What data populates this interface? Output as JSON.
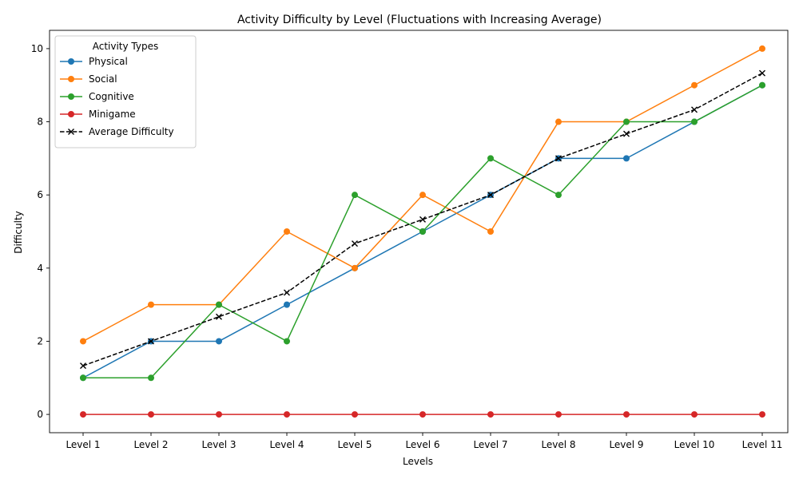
{
  "chart_data": {
    "type": "line",
    "title": "Activity Difficulty by Level (Fluctuations with Increasing Average)",
    "xlabel": "Levels",
    "ylabel": "Difficulty",
    "categories": [
      "Level 1",
      "Level 2",
      "Level 3",
      "Level 4",
      "Level 5",
      "Level 6",
      "Level 7",
      "Level 8",
      "Level 9",
      "Level 10",
      "Level 11"
    ],
    "ylim": [
      -0.5,
      10.5
    ],
    "yticks": [
      0,
      2,
      4,
      6,
      8,
      10
    ],
    "grid": false,
    "legend": {
      "title": "Activity Types",
      "placement": "top-left"
    },
    "series": [
      {
        "name": "Physical",
        "color": "#1f77b4",
        "marker": "circle",
        "dashed": false,
        "values": [
          1,
          2,
          2,
          3,
          4,
          5,
          6,
          7,
          7,
          8,
          9
        ]
      },
      {
        "name": "Social",
        "color": "#ff7f0e",
        "marker": "circle",
        "dashed": false,
        "values": [
          2,
          3,
          3,
          5,
          4,
          6,
          5,
          8,
          8,
          9,
          10
        ]
      },
      {
        "name": "Cognitive",
        "color": "#2ca02c",
        "marker": "circle",
        "dashed": false,
        "values": [
          1,
          1,
          3,
          2,
          6,
          5,
          7,
          6,
          8,
          8,
          9
        ]
      },
      {
        "name": "Minigame",
        "color": "#d62728",
        "marker": "circle",
        "dashed": false,
        "values": [
          0,
          0,
          0,
          0,
          0,
          0,
          0,
          0,
          0,
          0,
          0
        ]
      },
      {
        "name": "Average Difficulty",
        "color": "#000000",
        "marker": "x",
        "dashed": true,
        "values": [
          1.33,
          2.0,
          2.67,
          3.33,
          4.67,
          5.33,
          6.0,
          7.0,
          7.67,
          8.33,
          9.33
        ]
      }
    ]
  }
}
